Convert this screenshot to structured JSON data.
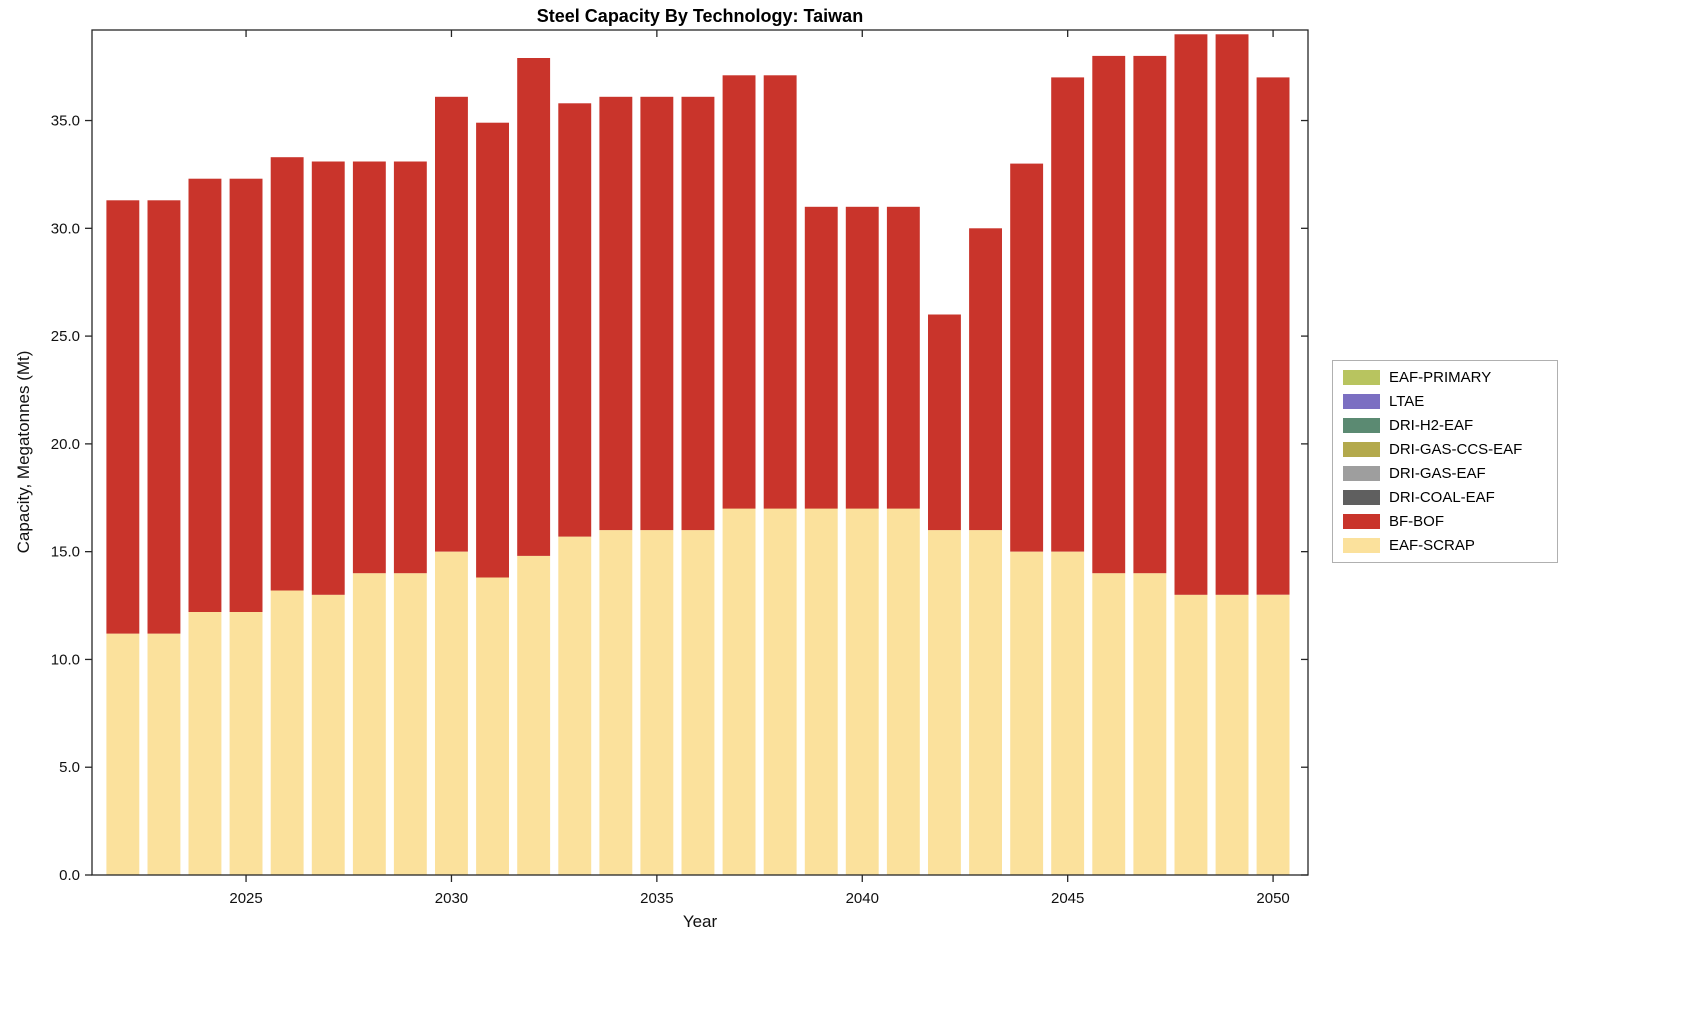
{
  "chart_data": {
    "type": "bar",
    "stacked": true,
    "title": "Steel Capacity By Technology: Taiwan",
    "xlabel": "Year",
    "ylabel": "Capacity, Megatonnes (Mt)",
    "categories": [
      2022,
      2023,
      2024,
      2025,
      2026,
      2027,
      2028,
      2029,
      2030,
      2031,
      2032,
      2033,
      2034,
      2035,
      2036,
      2037,
      2038,
      2039,
      2040,
      2041,
      2042,
      2043,
      2044,
      2045,
      2046,
      2047,
      2048,
      2049,
      2050
    ],
    "series": [
      {
        "name": "EAF-SCRAP",
        "color": "#fbe19c",
        "values": [
          11.2,
          11.2,
          12.2,
          12.2,
          13.2,
          13.0,
          14.0,
          14.0,
          15.0,
          13.8,
          14.8,
          15.7,
          16.0,
          16.0,
          16.0,
          17.0,
          17.0,
          17.0,
          17.0,
          17.0,
          16.0,
          16.0,
          15.0,
          15.0,
          14.0,
          14.0,
          13.0,
          13.0,
          13.0
        ]
      },
      {
        "name": "BF-BOF",
        "color": "#c9342b",
        "values": [
          20.1,
          20.1,
          20.1,
          20.1,
          20.1,
          20.1,
          19.1,
          19.1,
          21.1,
          21.1,
          23.1,
          20.1,
          20.1,
          20.1,
          20.1,
          20.1,
          20.1,
          14.0,
          14.0,
          14.0,
          10.0,
          14.0,
          18.0,
          22.0,
          24.0,
          24.0,
          26.0,
          26.0,
          24.0
        ]
      }
    ],
    "ylim": [
      0,
      39.2
    ],
    "yticks": {
      "values": [
        0,
        5,
        10,
        15,
        20,
        25,
        30,
        35
      ],
      "labels": [
        "0.0",
        "5.0",
        "10.0",
        "15.0",
        "20.0",
        "25.0",
        "30.0",
        "35.0"
      ]
    },
    "xticks": {
      "values": [
        2025,
        2030,
        2035,
        2040,
        2045,
        2050
      ],
      "labels": [
        "2025",
        "2030",
        "2035",
        "2040",
        "2045",
        "2050"
      ]
    },
    "grid": false,
    "legend_position": "right-outside"
  },
  "legend": {
    "entries": [
      {
        "label": "EAF-PRIMARY",
        "color": "#b8c45f"
      },
      {
        "label": "LTAE",
        "color": "#7b6fc2"
      },
      {
        "label": "DRI-H2-EAF",
        "color": "#5b8a72"
      },
      {
        "label": "DRI-GAS-CCS-EAF",
        "color": "#b3a94c"
      },
      {
        "label": "DRI-GAS-EAF",
        "color": "#9e9e9e"
      },
      {
        "label": "DRI-COAL-EAF",
        "color": "#5f5f5f"
      },
      {
        "label": "BF-BOF",
        "color": "#c9342b"
      },
      {
        "label": "EAF-SCRAP",
        "color": "#fbe19c"
      }
    ]
  }
}
